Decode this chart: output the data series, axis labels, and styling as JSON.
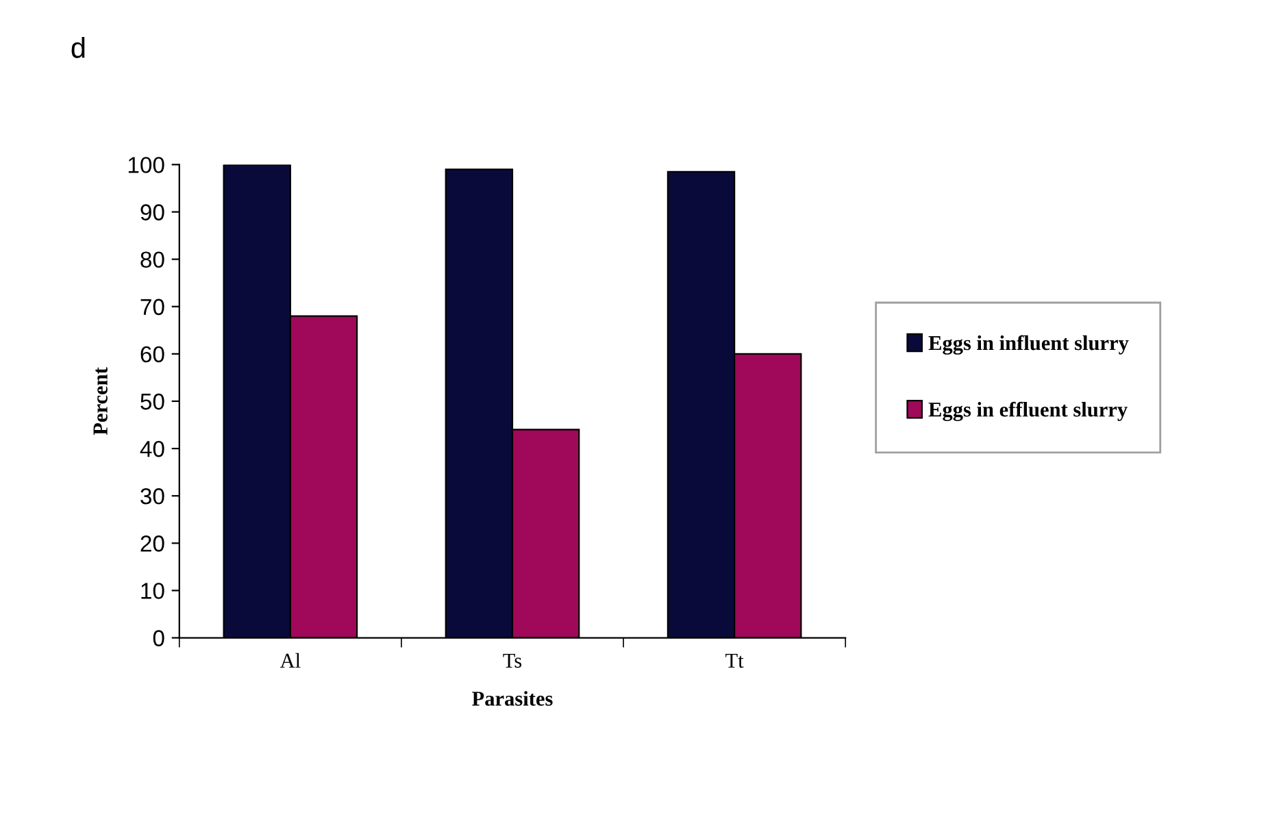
{
  "chart_data": {
    "type": "bar",
    "title": "d",
    "categories": [
      "Al",
      "Ts",
      "Tt"
    ],
    "series": [
      {
        "name": "Eggs in influent slurry",
        "color": "#0a0a3a",
        "values": [
          100,
          99,
          98.5
        ]
      },
      {
        "name": "Eggs in effluent slurry",
        "color": "#a0085a",
        "values": [
          68,
          44,
          60
        ]
      }
    ],
    "xlabel": "Parasites",
    "ylabel": "Percent",
    "ylim": [
      0,
      100
    ],
    "yticks": [
      0,
      10,
      20,
      30,
      40,
      50,
      60,
      70,
      80,
      90,
      100
    ],
    "grid": false,
    "legend": "right"
  }
}
